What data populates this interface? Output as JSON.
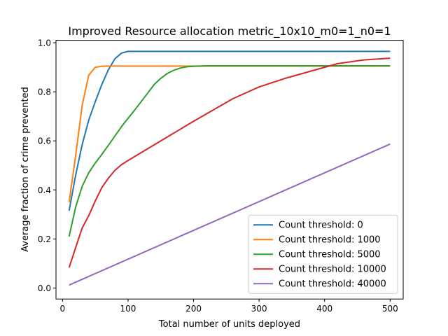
{
  "chart_data": {
    "type": "line",
    "title": "Improved Resource allocation metric_10x10_m0=1_n0=1",
    "xlabel": "Total number of units deployed",
    "ylabel": "Average fraction of crime prevented",
    "xlim": [
      -10,
      520
    ],
    "ylim": [
      -0.045,
      1.01
    ],
    "xticks": [
      0,
      100,
      200,
      300,
      400,
      500
    ],
    "yticks": [
      0.0,
      0.2,
      0.4,
      0.6,
      0.8,
      1.0
    ],
    "xtick_labels": [
      "0",
      "100",
      "200",
      "300",
      "400",
      "500"
    ],
    "ytick_labels": [
      "0.0",
      "0.2",
      "0.4",
      "0.6",
      "0.8",
      "1.0"
    ],
    "grid": false,
    "legend_position": "lower-right",
    "series": [
      {
        "name": "Count threshold: 0",
        "color": "#1f77b4",
        "x": [
          10,
          20,
          30,
          40,
          50,
          60,
          70,
          80,
          90,
          100,
          500
        ],
        "y": [
          0.315,
          0.46,
          0.585,
          0.685,
          0.76,
          0.83,
          0.89,
          0.935,
          0.958,
          0.965,
          0.965
        ]
      },
      {
        "name": "Count threshold: 1000",
        "color": "#ff7f0e",
        "x": [
          10,
          20,
          30,
          40,
          50,
          60,
          70,
          500
        ],
        "y": [
          0.35,
          0.54,
          0.745,
          0.868,
          0.9,
          0.904,
          0.905,
          0.905
        ]
      },
      {
        "name": "Count threshold: 5000",
        "color": "#2ca02c",
        "x": [
          10,
          20,
          30,
          40,
          50,
          60,
          70,
          80,
          90,
          100,
          110,
          120,
          130,
          140,
          150,
          160,
          170,
          180,
          190,
          200,
          210,
          220,
          230,
          240,
          500
        ],
        "y": [
          0.21,
          0.33,
          0.415,
          0.47,
          0.51,
          0.545,
          0.582,
          0.62,
          0.658,
          0.692,
          0.725,
          0.76,
          0.795,
          0.83,
          0.855,
          0.875,
          0.888,
          0.897,
          0.902,
          0.904,
          0.905,
          0.906,
          0.906,
          0.906,
          0.906
        ]
      },
      {
        "name": "Count threshold: 10000",
        "color": "#d62728",
        "x": [
          10,
          20,
          30,
          40,
          50,
          60,
          70,
          80,
          90,
          100,
          150,
          200,
          260,
          300,
          340,
          380,
          420,
          460,
          500
        ],
        "y": [
          0.083,
          0.165,
          0.245,
          0.295,
          0.355,
          0.41,
          0.448,
          0.48,
          0.503,
          0.52,
          0.6,
          0.68,
          0.772,
          0.82,
          0.855,
          0.885,
          0.915,
          0.93,
          0.937
        ]
      },
      {
        "name": "Count threshold: 40000",
        "color": "#9467bd",
        "x": [
          10,
          500
        ],
        "y": [
          0.012,
          0.587
        ]
      }
    ]
  }
}
